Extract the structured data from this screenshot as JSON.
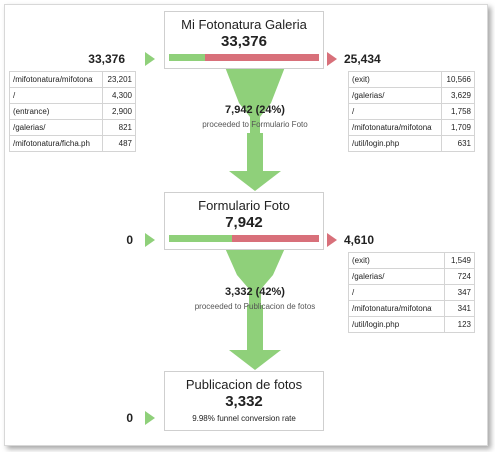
{
  "steps": [
    {
      "title": "Mi Fotonatura Galeria",
      "value": "33,376",
      "entered": "33,376",
      "exited": "25,434",
      "proceeded_pct": 0.24,
      "entrances": [
        {
          "path": "/mifotonatura/mifotonatu",
          "count": "23,201"
        },
        {
          "path": "/",
          "count": "4,300"
        },
        {
          "path": "(entrance)",
          "count": "2,900"
        },
        {
          "path": "/galerias/",
          "count": "821"
        },
        {
          "path": "/mifotonatura/ficha.ph",
          "count": "487"
        }
      ],
      "exits": [
        {
          "path": "(exit)",
          "count": "10,566"
        },
        {
          "path": "/galerias/",
          "count": "3,629"
        },
        {
          "path": "/",
          "count": "1,758"
        },
        {
          "path": "/mifotonatura/mifotonatu",
          "count": "1,709"
        },
        {
          "path": "/util/login.php",
          "count": "631"
        }
      ]
    },
    {
      "title": "Formulario Foto",
      "value": "7,942",
      "entered": "0",
      "exited": "4,610",
      "proceeded_pct": 0.42,
      "exits": [
        {
          "path": "(exit)",
          "count": "1,549"
        },
        {
          "path": "/galerias/",
          "count": "724"
        },
        {
          "path": "/",
          "count": "347"
        },
        {
          "path": "/mifotonatura/mifotonatu",
          "count": "341"
        },
        {
          "path": "/util/login.php",
          "count": "123"
        }
      ]
    },
    {
      "title": "Publicacion de fotos",
      "value": "3,332",
      "entered": "0",
      "conversion_rate": "9.98% funnel conversion rate"
    }
  ],
  "flows": [
    {
      "value": "7,942 (24%)",
      "caption": "proceeded to Formulario Foto"
    },
    {
      "value": "3,332 (42%)",
      "caption": "proceeded to Publicacion de fotos"
    }
  ],
  "colors": {
    "proceed": "#8fd07a",
    "exit": "#d8707a",
    "border": "#cfcfcf"
  }
}
